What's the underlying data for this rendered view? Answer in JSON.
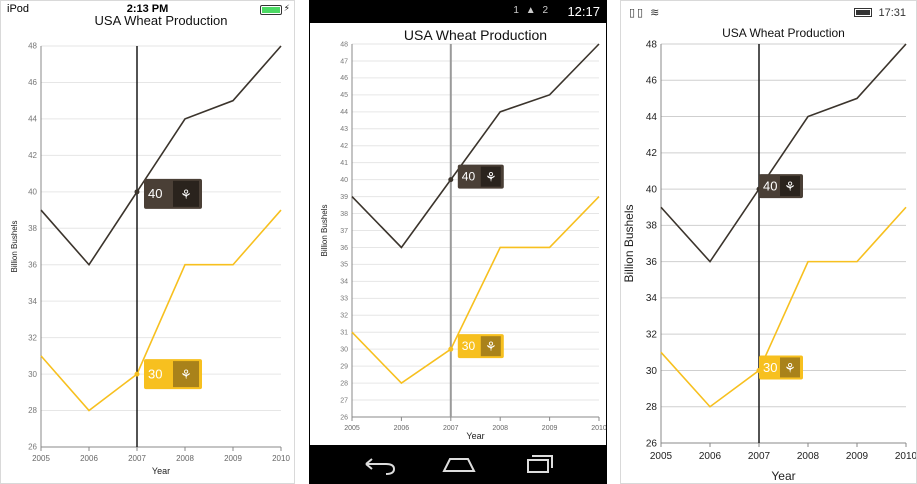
{
  "chart_data": [
    {
      "type": "line",
      "platform": "iOS",
      "title": "USA Wheat Production",
      "xlabel": "Year",
      "ylabel": "Billion Bushels",
      "categories": [
        "2005",
        "2006",
        "2007",
        "2008",
        "2009",
        "2010"
      ],
      "ylim": [
        26,
        48
      ],
      "ytick_step": 2,
      "grid": true,
      "series": [
        {
          "values": [
            39,
            36,
            40,
            44,
            45,
            48
          ],
          "color": "#3b342c"
        },
        {
          "values": [
            31,
            28,
            30,
            36,
            36,
            39
          ],
          "color": "#f7c01f"
        }
      ],
      "trackball": {
        "category": "2007",
        "line_color": "#1a1a1a",
        "labels": [
          "40",
          "30"
        ]
      }
    },
    {
      "type": "line",
      "platform": "Android",
      "title": "USA Wheat Production",
      "xlabel": "Year",
      "ylabel": "Billion Bushels",
      "categories": [
        "2005",
        "2006",
        "2007",
        "2008",
        "2009",
        "2010"
      ],
      "ylim": [
        26,
        48
      ],
      "ytick_step": 1,
      "grid": true,
      "series": [
        {
          "values": [
            39,
            36,
            40,
            44,
            45,
            48
          ],
          "color": "#3b342c"
        },
        {
          "values": [
            31,
            28,
            30,
            36,
            36,
            39
          ],
          "color": "#f7c01f"
        }
      ],
      "trackball": {
        "category": "2007",
        "line_color": "#9a9a9a",
        "labels": [
          "40",
          "30"
        ]
      }
    },
    {
      "type": "line",
      "platform": "Windows",
      "title": "USA Wheat Production",
      "xlabel": "Year",
      "ylabel": "Billion Bushels",
      "categories": [
        "2005",
        "2006",
        "2007",
        "2008",
        "2009",
        "2010"
      ],
      "ylim": [
        26,
        48
      ],
      "ytick_step": 2,
      "grid": true,
      "series": [
        {
          "values": [
            39,
            36,
            40,
            44,
            45,
            48
          ],
          "color": "#3b342c"
        },
        {
          "values": [
            31,
            28,
            30,
            36,
            36,
            39
          ],
          "color": "#f7c01f"
        }
      ],
      "trackball": {
        "category": "2007",
        "line_color": "#1a1a1a",
        "labels": [
          "40",
          "30"
        ]
      }
    }
  ],
  "ios_status": {
    "carrier": "iPod",
    "time": "2:13 PM"
  },
  "android_status": {
    "time": "12:17",
    "icons": "1 ▲ 2"
  },
  "wp_status": {
    "time": "17:31"
  },
  "colors": {
    "dark_series": "#3b342c",
    "gold_series": "#f7c01f",
    "dark_label": "#4a3f36",
    "gold_label": "#f7c01f"
  },
  "icons": {
    "tooltip_icon": "wheat-icon"
  }
}
